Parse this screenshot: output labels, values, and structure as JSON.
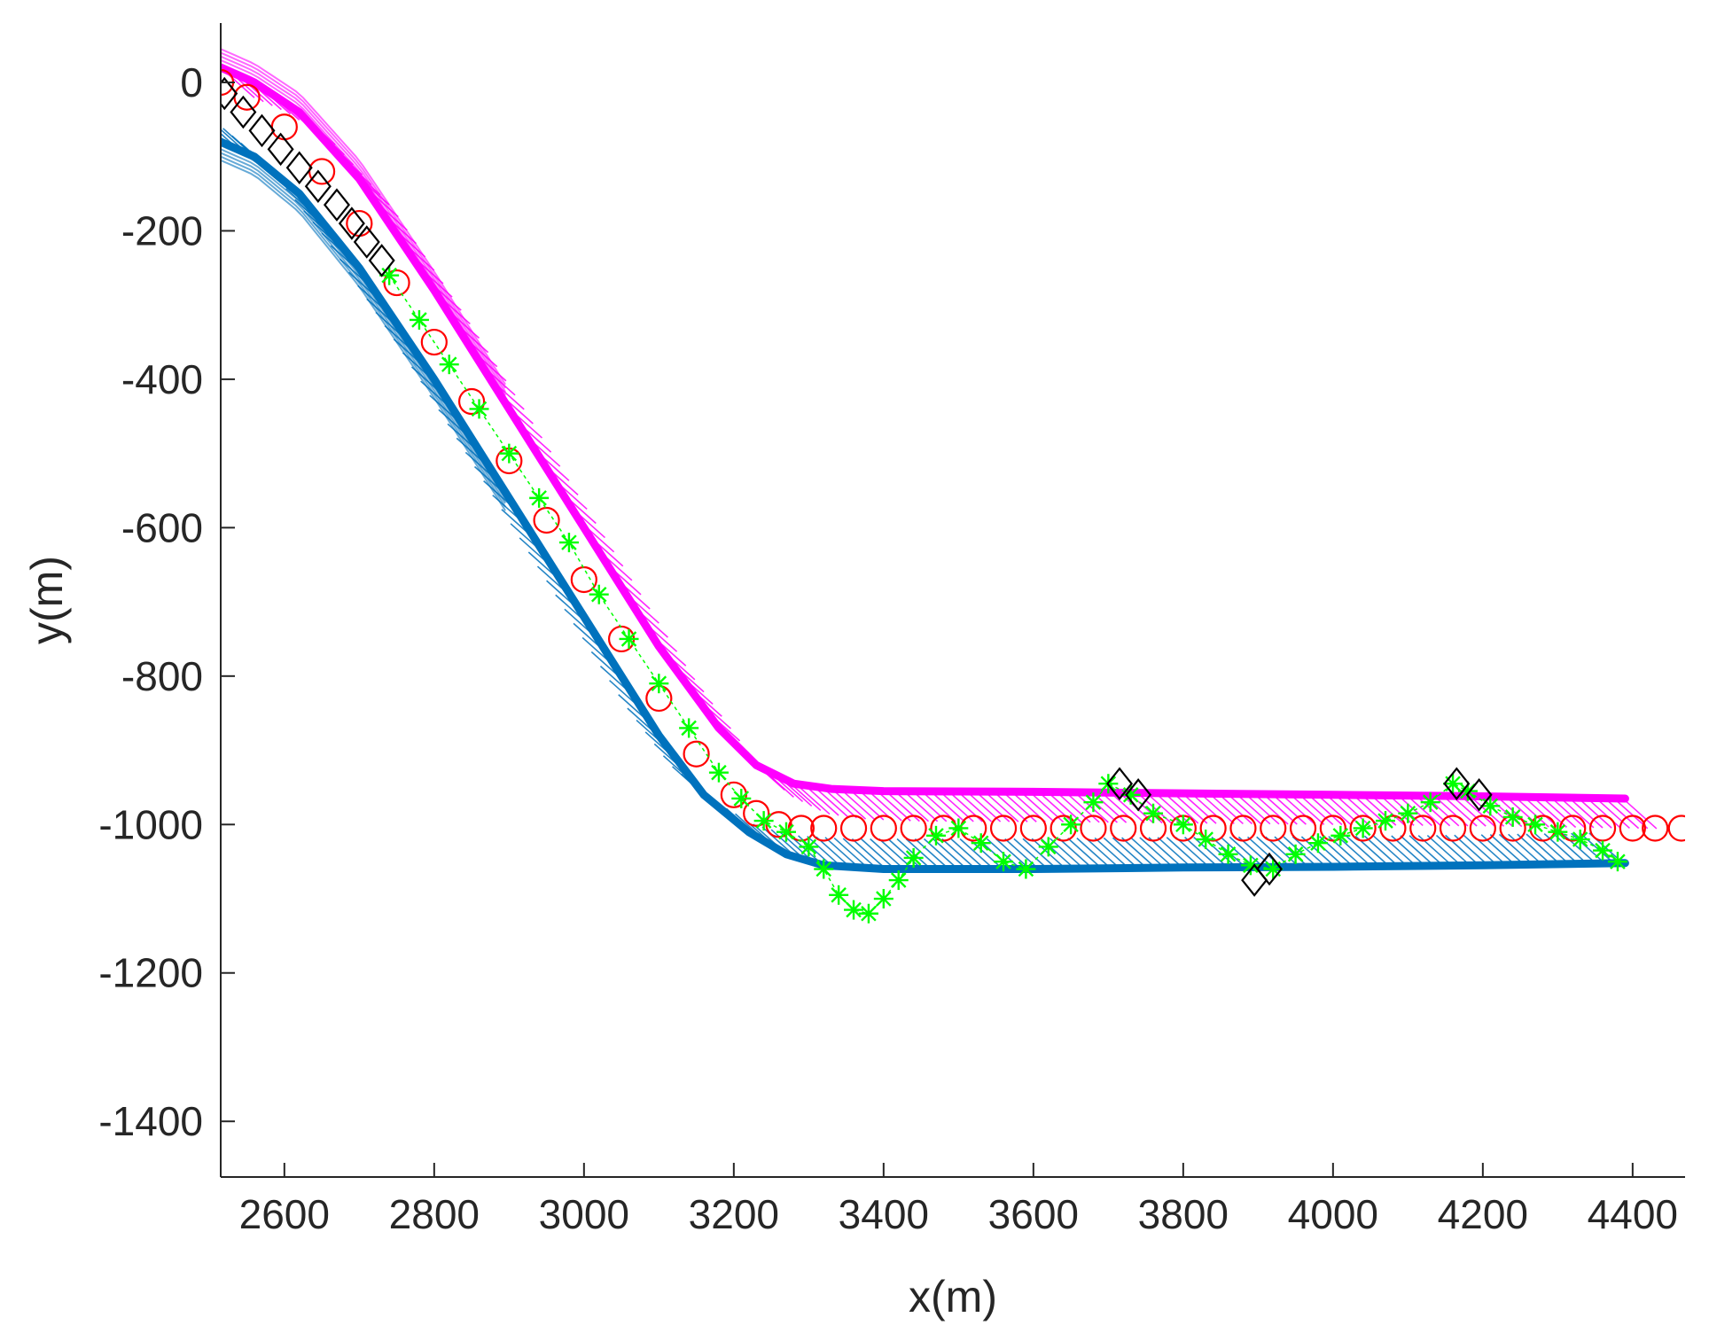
{
  "chart_data": {
    "type": "line",
    "title": "",
    "xlabel": "x(m)",
    "ylabel": "y(m)",
    "xlim": [
      2515,
      4470
    ],
    "ylim": [
      -1475,
      80
    ],
    "xticks": [
      2600,
      2800,
      3000,
      3200,
      3400,
      3600,
      3800,
      4000,
      4200,
      4400
    ],
    "yticks": [
      0,
      -200,
      -400,
      -600,
      -800,
      -1000,
      -1200,
      -1400
    ],
    "xtick_labels": [
      "2600",
      "2800",
      "3000",
      "3200",
      "3400",
      "3600",
      "3800",
      "4000",
      "4200",
      "4400"
    ],
    "ytick_labels": [
      "0",
      "-200",
      "-400",
      "-600",
      "-800",
      "-1000",
      "-1200",
      "-1400"
    ],
    "grid": false,
    "legend": "none",
    "series": [
      {
        "style": "line-with-hatch",
        "color": "#ff00ff",
        "x": [
          2515,
          2560,
          2620,
          2700,
          2800,
          2900,
          3000,
          3100,
          3180,
          3230,
          3280,
          3330,
          3400,
          3600,
          3800,
          4000,
          4200,
          4390
        ],
        "y": [
          20,
          0,
          -40,
          -130,
          -280,
          -440,
          -600,
          -760,
          -870,
          -920,
          -945,
          -952,
          -955,
          -956,
          -958,
          -960,
          -962,
          -965
        ]
      },
      {
        "style": "line-with-hatch",
        "color": "#0072bd",
        "x": [
          2515,
          2560,
          2620,
          2700,
          2800,
          2900,
          3000,
          3100,
          3160,
          3220,
          3270,
          3320,
          3400,
          3600,
          3800,
          4000,
          4200,
          4390
        ],
        "y": [
          -80,
          -100,
          -150,
          -250,
          -400,
          -560,
          -720,
          -880,
          -960,
          -1010,
          -1040,
          -1055,
          -1060,
          -1060,
          -1058,
          -1057,
          -1055,
          -1052
        ]
      },
      {
        "style": "circle-markers",
        "color": "#ff0000",
        "x": [
          2515,
          2550,
          2600,
          2650,
          2700,
          2750,
          2800,
          2850,
          2900,
          2950,
          3000,
          3050,
          3100,
          3150,
          3200,
          3230,
          3260,
          3290,
          3320,
          3360,
          3400,
          3440,
          3480,
          3520,
          3560,
          3600,
          3640,
          3680,
          3720,
          3760,
          3800,
          3840,
          3880,
          3920,
          3960,
          4000,
          4040,
          4080,
          4120,
          4160,
          4200,
          4240,
          4280,
          4320,
          4360,
          4400,
          4430,
          4465
        ],
        "y": [
          0,
          -20,
          -60,
          -120,
          -190,
          -270,
          -350,
          -430,
          -510,
          -590,
          -670,
          -750,
          -830,
          -905,
          -960,
          -985,
          -1000,
          -1005,
          -1005,
          -1005,
          -1005,
          -1005,
          -1005,
          -1005,
          -1005,
          -1005,
          -1005,
          -1005,
          -1005,
          -1005,
          -1005,
          -1005,
          -1005,
          -1005,
          -1005,
          -1005,
          -1005,
          -1005,
          -1005,
          -1005,
          -1005,
          -1005,
          -1005,
          -1005,
          -1005,
          -1005,
          -1005,
          -1005
        ]
      },
      {
        "style": "star-markers",
        "color": "#00ff00",
        "x": [
          2740,
          2780,
          2820,
          2860,
          2900,
          2940,
          2980,
          3020,
          3060,
          3100,
          3140,
          3180,
          3210,
          3240,
          3270,
          3300,
          3320,
          3340,
          3360,
          3380,
          3400,
          3420,
          3440,
          3470,
          3500,
          3530,
          3560,
          3590,
          3620,
          3650,
          3680,
          3700,
          3730,
          3760,
          3800,
          3830,
          3860,
          3890,
          3920,
          3950,
          3980,
          4010,
          4040,
          4070,
          4100,
          4130,
          4160,
          4180,
          4210,
          4240,
          4270,
          4300,
          4330,
          4360,
          4380
        ],
        "y": [
          -260,
          -320,
          -380,
          -440,
          -500,
          -560,
          -620,
          -690,
          -750,
          -810,
          -870,
          -930,
          -965,
          -995,
          -1010,
          -1030,
          -1060,
          -1095,
          -1115,
          -1120,
          -1100,
          -1075,
          -1045,
          -1015,
          -1005,
          -1025,
          -1050,
          -1060,
          -1030,
          -1000,
          -970,
          -945,
          -960,
          -985,
          -1000,
          -1020,
          -1040,
          -1055,
          -1060,
          -1040,
          -1025,
          -1015,
          -1005,
          -995,
          -985,
          -970,
          -945,
          -955,
          -975,
          -990,
          -1000,
          -1010,
          -1020,
          -1035,
          -1050
        ]
      },
      {
        "style": "diamond-markers",
        "color": "#000000",
        "x": [
          2520,
          2545,
          2570,
          2595,
          2620,
          2645,
          2670,
          2690,
          2710,
          2730,
          3715,
          3740,
          3895,
          3915,
          4165,
          4195
        ],
        "y": [
          -15,
          -40,
          -65,
          -90,
          -115,
          -140,
          -165,
          -190,
          -215,
          -240,
          -945,
          -960,
          -1075,
          -1060,
          -945,
          -960
        ]
      }
    ]
  }
}
